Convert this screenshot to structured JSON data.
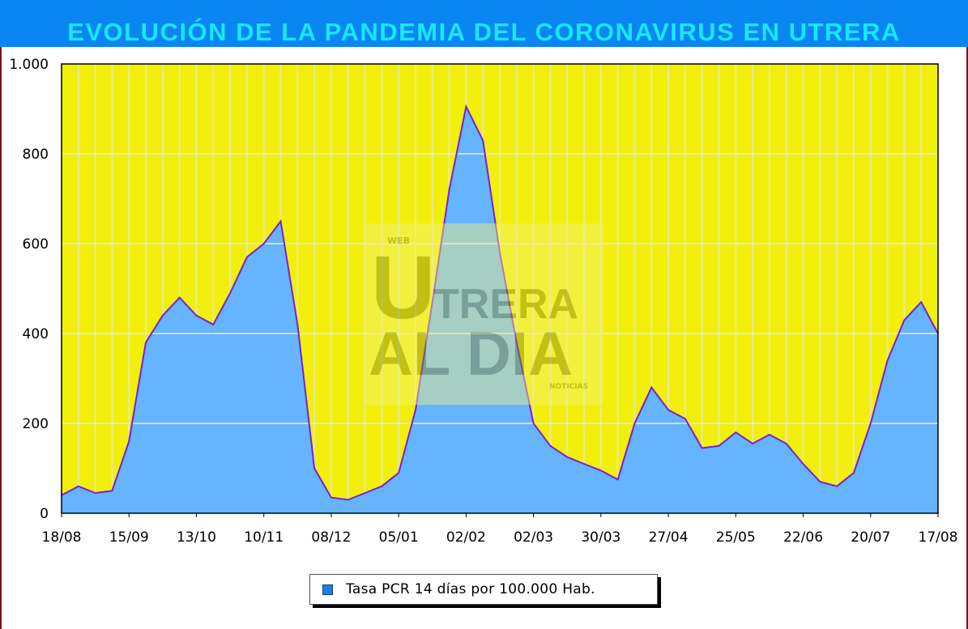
{
  "header": {
    "title": "EVOLUCIÓN DE LA PANDEMIA DEL CORONAVIRUS EN UTRERA"
  },
  "watermark": {
    "text_top": "WEB",
    "text_main1": "TRERA",
    "text_main2": "AL DIA",
    "text_small": "NOTICIAS"
  },
  "colors": {
    "title_bar": "#0a86f2",
    "title_text": "#19e6ff",
    "plot_background": "#f2f00a",
    "area_fill": "#66b3ff",
    "line": "#7a1fd6"
  },
  "chart_data": {
    "type": "area",
    "title": "",
    "xlabel": "",
    "ylabel": "",
    "ylim": [
      0,
      1000
    ],
    "grid": true,
    "legend_position": "bottom",
    "yticks": [
      0,
      200,
      400,
      600,
      800,
      1000
    ],
    "ytick_labels": [
      "0",
      "200",
      "400",
      "600",
      "800",
      "1.000"
    ],
    "xtick_labels": [
      "18/08",
      "15/09",
      "13/10",
      "10/11",
      "08/12",
      "05/01",
      "02/02",
      "02/03",
      "30/03",
      "27/04",
      "25/05",
      "22/06",
      "20/07",
      "17/08"
    ],
    "series": [
      {
        "name": "Tasa PCR 14 días por 100.000 Hab.",
        "x": [
          "18/08",
          "25/08",
          "01/09",
          "08/09",
          "15/09",
          "22/09",
          "29/09",
          "06/10",
          "13/10",
          "20/10",
          "27/10",
          "03/11",
          "10/11",
          "17/11",
          "24/11",
          "01/12",
          "08/12",
          "15/12",
          "22/12",
          "29/12",
          "05/01",
          "12/01",
          "19/01",
          "26/01",
          "02/02",
          "09/02",
          "16/02",
          "23/02",
          "02/03",
          "09/03",
          "16/03",
          "23/03",
          "30/03",
          "06/04",
          "13/04",
          "20/04",
          "27/04",
          "04/05",
          "11/05",
          "18/05",
          "25/05",
          "01/06",
          "08/06",
          "15/06",
          "22/06",
          "29/06",
          "06/07",
          "13/07",
          "20/07",
          "27/07",
          "03/08",
          "10/08",
          "17/08"
        ],
        "values": [
          40,
          60,
          45,
          50,
          160,
          380,
          440,
          480,
          440,
          420,
          490,
          570,
          600,
          650,
          420,
          100,
          35,
          30,
          45,
          60,
          90,
          230,
          470,
          720,
          905,
          830,
          580,
          380,
          200,
          150,
          125,
          110,
          95,
          75,
          200,
          280,
          230,
          210,
          145,
          150,
          180,
          155,
          175,
          155,
          110,
          70,
          60,
          90,
          200,
          340,
          430,
          470,
          400
        ]
      }
    ]
  }
}
